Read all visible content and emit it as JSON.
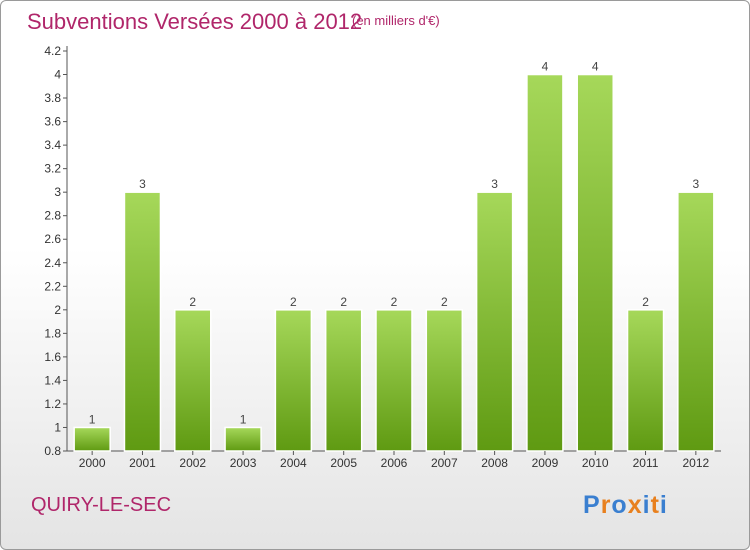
{
  "header": {
    "title": "Subventions Versées 2000 à 2012",
    "subtitle": "(en milliers d'€)"
  },
  "footer": {
    "city": "QUIRY-LE-SEC",
    "logo": [
      "P",
      "r",
      "o",
      "x",
      "i",
      "t",
      "i"
    ]
  },
  "colors": {
    "accent": "#b0266a",
    "bar_top": "#a6d85a",
    "bar_bottom": "#5f9a12",
    "logo_letters": [
      "#3a7fd0",
      "#e8801e",
      "#3a7fd0",
      "#e8801e",
      "#3a7fd0",
      "#e8801e",
      "#3a7fd0"
    ]
  },
  "chart_data": {
    "type": "bar",
    "categories": [
      "2000",
      "2001",
      "2002",
      "2003",
      "2004",
      "2005",
      "2006",
      "2007",
      "2008",
      "2009",
      "2010",
      "2011",
      "2012"
    ],
    "values": [
      1,
      3,
      2,
      1,
      2,
      2,
      2,
      2,
      3,
      4,
      4,
      2,
      3
    ],
    "data_labels": [
      "1",
      "3",
      "2",
      "1",
      "2",
      "2",
      "2",
      "2",
      "3",
      "4",
      "4",
      "2",
      "3"
    ],
    "title": "Subventions Versées 2000 à 2012",
    "ylim": [
      0.8,
      4.2
    ],
    "yticks": [
      0.8,
      1,
      1.2,
      1.4,
      1.6,
      1.8,
      2,
      2.2,
      2.4,
      2.6,
      2.8,
      3,
      3.2,
      3.4,
      3.6,
      3.8,
      4,
      4.2
    ],
    "ytick_labels": [
      "0.8",
      "1",
      "1.2",
      "1.4",
      "1.6",
      "1.8",
      "2",
      "2.2",
      "2.4",
      "2.6",
      "2.8",
      "3",
      "3.2",
      "3.4",
      "3.6",
      "3.8",
      "4",
      "4.2"
    ],
    "grid": false
  }
}
